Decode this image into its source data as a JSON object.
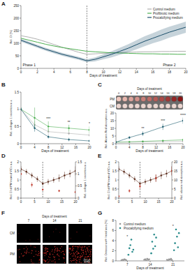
{
  "chart_data": [
    {
      "title": "A",
      "type": "line",
      "x_label": "Days of treatment",
      "y_label": "Rel. CI [%]",
      "xlim": [
        0,
        20
      ],
      "xticks": [
        0,
        2,
        4,
        6,
        8,
        10,
        12,
        14,
        16,
        18,
        20
      ],
      "ylim": [
        0,
        250
      ],
      "yticks": [
        0,
        50,
        100,
        150,
        200,
        250
      ],
      "legend": "top-right",
      "vline": 8,
      "annotations": [
        {
          "text": "Phase 1",
          "x": 1
        },
        {
          "text": "Phase 2",
          "x": 18
        }
      ],
      "x": [
        0,
        1,
        2,
        3,
        4,
        5,
        6,
        7,
        8,
        9,
        10,
        11,
        12,
        13,
        14,
        15,
        16,
        17,
        18,
        19,
        20
      ],
      "series": [
        {
          "name": "Control medium",
          "color": "#b0b0b0",
          "values": [
            130,
            124,
            116,
            106,
            95,
            84,
            74,
            64,
            56,
            58,
            60,
            62,
            63,
            64,
            65,
            66,
            66,
            67,
            67,
            68,
            68
          ]
        },
        {
          "name": "Profibrotic medium",
          "color": "#4caf50",
          "values": [
            120,
            112,
            104,
            96,
            89,
            83,
            78,
            73,
            68,
            66,
            64,
            62,
            61,
            60,
            59,
            58,
            58,
            57,
            57,
            56,
            56
          ]
        },
        {
          "name": "Procalcifying medium",
          "color": "#1b4f6b",
          "values": [
            112,
            100,
            88,
            76,
            66,
            56,
            48,
            40,
            30,
            36,
            46,
            56,
            68,
            80,
            94,
            108,
            120,
            132,
            144,
            154,
            164
          ],
          "errors": [
            6,
            6,
            6,
            6,
            6,
            6,
            6,
            6,
            6,
            8,
            10,
            12,
            14,
            16,
            18,
            20,
            20,
            22,
            22,
            22,
            22
          ]
        }
      ]
    },
    {
      "title": "B",
      "type": "line",
      "marker": "circle",
      "x_label": "Days of treatment",
      "y_label": "Rel. collagen 1 secretion a.u.",
      "xlim": [
        0,
        20
      ],
      "xticks": [
        0,
        4,
        8,
        12,
        16,
        20
      ],
      "ylim": [
        0,
        1.5
      ],
      "yticks": [
        0,
        0.5,
        1,
        1.5
      ],
      "annotations": [
        {
          "text": "***",
          "x": 8
        },
        {
          "text": "**",
          "x": 14
        },
        {
          "text": "*",
          "x": 20
        }
      ],
      "x": [
        0,
        4,
        8,
        14,
        20
      ],
      "series": [
        {
          "name": "Control medium",
          "color": "#b0b0b0",
          "values": [
            1,
            0.55,
            0.35,
            0.3,
            0.25
          ],
          "errors": [
            0.05,
            0.1,
            0.1,
            0.05,
            0.05
          ]
        },
        {
          "name": "Profibrotic medium",
          "color": "#4caf50",
          "values": [
            1,
            0.75,
            0.5,
            0.45,
            0.4
          ],
          "errors": [
            0.05,
            0.3,
            0.15,
            0.1,
            0.1
          ]
        },
        {
          "name": "Procalcifying medium",
          "color": "#1d5c6e",
          "values": [
            1,
            0.45,
            0.2,
            0.12,
            0.08
          ],
          "errors": [
            0.05,
            0.1,
            0.05,
            0.05,
            0.03
          ]
        }
      ]
    },
    {
      "title": "C",
      "type": "line",
      "marker": "circle",
      "x_label": "Days of treatment",
      "y_label": "Rel. Alizarin Red absorption a.u.",
      "xlim": [
        0,
        20
      ],
      "xticks": [
        0,
        4,
        8,
        12,
        16,
        20
      ],
      "ylim": [
        0,
        20
      ],
      "yticks": [
        0,
        5,
        10,
        15,
        20
      ],
      "annotations": [
        {
          "text": "**",
          "x": 8
        },
        {
          "text": "***",
          "x": 14
        },
        {
          "text": "****",
          "x": 20
        }
      ],
      "strip": {
        "title": "Days of treatment",
        "days": [
          0,
          2,
          4,
          6,
          8,
          10,
          12,
          14,
          16,
          18,
          20
        ],
        "rows": [
          "PM",
          "CM"
        ]
      },
      "x": [
        0,
        4,
        8,
        14,
        20
      ],
      "series": [
        {
          "name": "Control medium",
          "color": "#b0b0b0",
          "values": [
            1,
            1,
            1.2,
            1.3,
            1.5
          ],
          "errors": [
            0.1,
            0.2,
            0.2,
            0.3,
            0.3
          ]
        },
        {
          "name": "Profibrotic medium",
          "color": "#4caf50",
          "values": [
            1,
            1.2,
            1.5,
            2,
            2.5
          ],
          "errors": [
            0.1,
            0.2,
            0.3,
            0.4,
            0.5
          ]
        },
        {
          "name": "Procalcifying medium",
          "color": "#1d5c6e",
          "values": [
            1,
            4,
            6.5,
            11,
            15
          ],
          "errors": [
            0.1,
            1,
            1.5,
            2,
            2
          ]
        }
      ]
    },
    {
      "title": "D",
      "type": "line",
      "marker": "circle",
      "y_label": "Rel. CI of PM treated VICs a.u.",
      "y2_label": "Rel. collagen 1 secretion a.u.",
      "xlim": [
        0,
        20
      ],
      "xticks": [
        0,
        5,
        10,
        15,
        20
      ],
      "ylim": [
        0,
        2
      ],
      "yticks": [
        0,
        0.5,
        1,
        1.5,
        2
      ],
      "y2lim": [
        0,
        1.5
      ],
      "y2ticks": [
        0,
        0.5,
        1,
        1.5
      ],
      "vline": 8,
      "x": [
        0,
        2,
        4,
        6,
        8,
        10,
        12,
        14,
        16,
        18,
        20
      ],
      "series": [
        {
          "color": "#5a2a1a",
          "values": [
            1.6,
            1.45,
            1.25,
            1.05,
            0.8,
            0.9,
            1.0,
            1.1,
            1.25,
            1.35,
            1.5
          ],
          "errors": [
            0.15,
            0.15,
            0.15,
            0.15,
            0.1,
            0.15,
            0.15,
            0.2,
            0.2,
            0.2,
            0.25
          ]
        },
        {
          "color": "#c0392b",
          "axis": "y2",
          "values": [
            1,
            null,
            0.55,
            null,
            0.35,
            null,
            null,
            0.3,
            null,
            null,
            0.25
          ],
          "errors": [
            0.05,
            null,
            0.1,
            null,
            0.05,
            null,
            null,
            0.05,
            null,
            null,
            0.05
          ]
        }
      ]
    },
    {
      "title": "E",
      "type": "line",
      "marker": "circle",
      "y_label": "Rel. CI of PM treated VICs a.u.",
      "y2_label": "Rel. alizarin red absorption a.u.",
      "xlim": [
        0,
        20
      ],
      "xticks": [
        0,
        5,
        10,
        15,
        20
      ],
      "ylim": [
        0,
        2
      ],
      "yticks": [
        0,
        0.5,
        1,
        1.5,
        2
      ],
      "y2lim": [
        0,
        20
      ],
      "y2ticks": [
        0,
        5,
        10,
        15,
        20
      ],
      "vline": 8,
      "x": [
        0,
        2,
        4,
        6,
        8,
        10,
        12,
        14,
        16,
        18,
        20
      ],
      "series": [
        {
          "color": "#5a2a1a",
          "values": [
            1.6,
            1.45,
            1.25,
            1.05,
            0.8,
            0.9,
            1.0,
            1.1,
            1.25,
            1.35,
            1.5
          ],
          "errors": [
            0.15,
            0.15,
            0.15,
            0.15,
            0.1,
            0.15,
            0.15,
            0.2,
            0.2,
            0.2,
            0.25
          ]
        },
        {
          "color": "#c0392b",
          "axis": "y2",
          "values": [
            1,
            null,
            4,
            null,
            6.5,
            null,
            null,
            11,
            null,
            null,
            15
          ],
          "errors": [
            0.2,
            null,
            1,
            null,
            1.5,
            null,
            null,
            2,
            null,
            null,
            2.5
          ]
        }
      ]
    },
    {
      "title": "G",
      "type": "scatter",
      "x_label": "Days of treatment",
      "y_label": "Rel. Osteosense® / total area [%]",
      "categories": [
        "7",
        "14",
        "21"
      ],
      "ylim": [
        0,
        8
      ],
      "yticks": [
        0,
        2,
        4,
        6,
        8
      ],
      "legend": "top-left",
      "annotations": [
        {
          "text": "*",
          "x": "7"
        },
        {
          "text": "*",
          "x": "21"
        }
      ],
      "series": [
        {
          "name": "Control medium",
          "color": "#999999",
          "values": [
            [
              0.1,
              0.2,
              0.15,
              0.3,
              0.25,
              0.1
            ],
            [
              0.2,
              0.3,
              0.1,
              0.4,
              0.2,
              0.3
            ],
            [
              0.2,
              0.1,
              0.3,
              0.25,
              0.4,
              0.15
            ]
          ]
        },
        {
          "name": "Procalcifying medium",
          "color": "#2a8c8c",
          "values": [
            [
              1.2,
              2.5,
              3.1,
              4.2,
              1.8,
              2.2
            ],
            [
              1.5,
              3.8,
              2.4,
              5.2,
              2.9,
              4.6
            ],
            [
              2.1,
              3.5,
              6.2,
              4.8,
              2.7,
              5.5
            ]
          ]
        }
      ]
    }
  ],
  "images": {
    "title": "F",
    "x_label": "Days of treatment",
    "columns": [
      7,
      14,
      21
    ],
    "rows": [
      "CM",
      "PM"
    ],
    "scale_bar": "200 µm"
  }
}
